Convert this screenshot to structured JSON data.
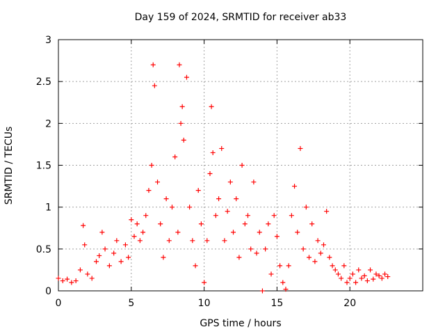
{
  "chart_data": {
    "type": "scatter",
    "title": "Day 159 of 2024, SRMTID for receiver ab33",
    "xlabel": "GPS time / hours",
    "ylabel": "SRMTID / TECUs",
    "xlim": [
      0,
      25
    ],
    "ylim": [
      0,
      3
    ],
    "x_ticks": [
      "0",
      "5",
      "10",
      "15",
      "20"
    ],
    "y_ticks": [
      "0",
      "0.5",
      "1",
      "1.5",
      "2",
      "2.5",
      "3"
    ],
    "grid": true,
    "marker": "plus",
    "color": "#ff0000",
    "series": [
      {
        "name": "SRMTID",
        "x": [
          0.0,
          0.3,
          0.6,
          0.9,
          1.2,
          1.5,
          1.7,
          1.8,
          2.0,
          2.3,
          2.6,
          2.8,
          3.0,
          3.2,
          3.5,
          3.8,
          4.0,
          4.3,
          4.6,
          4.8,
          5.0,
          5.2,
          5.4,
          5.6,
          5.8,
          6.0,
          6.2,
          6.4,
          6.5,
          6.6,
          6.8,
          7.0,
          7.2,
          7.4,
          7.6,
          7.8,
          8.0,
          8.2,
          8.3,
          8.4,
          8.5,
          8.6,
          8.8,
          9.0,
          9.2,
          9.4,
          9.6,
          9.8,
          10.0,
          10.2,
          10.4,
          10.5,
          10.6,
          10.8,
          11.0,
          11.2,
          11.4,
          11.6,
          11.8,
          12.0,
          12.2,
          12.4,
          12.6,
          12.8,
          13.0,
          13.2,
          13.4,
          13.6,
          13.8,
          14.0,
          14.2,
          14.4,
          14.6,
          14.8,
          15.0,
          15.2,
          15.4,
          15.6,
          15.8,
          16.0,
          16.2,
          16.4,
          16.6,
          16.8,
          17.0,
          17.2,
          17.4,
          17.6,
          17.8,
          18.0,
          18.2,
          18.4,
          18.6,
          18.8,
          19.0,
          19.2,
          19.4,
          19.6,
          19.8,
          20.0,
          20.2,
          20.4,
          20.6,
          20.8,
          21.0,
          21.2,
          21.4,
          21.6,
          21.8,
          22.0,
          22.2,
          22.4,
          22.6
        ],
        "y": [
          0.15,
          0.12,
          0.14,
          0.1,
          0.12,
          0.25,
          0.78,
          0.55,
          0.2,
          0.15,
          0.35,
          0.42,
          0.7,
          0.5,
          0.3,
          0.45,
          0.6,
          0.35,
          0.55,
          0.4,
          0.85,
          0.65,
          0.8,
          0.6,
          0.7,
          0.9,
          1.2,
          1.5,
          2.7,
          2.45,
          1.3,
          0.8,
          0.4,
          1.1,
          0.6,
          1.0,
          1.6,
          0.7,
          2.7,
          2.0,
          2.2,
          1.8,
          2.55,
          1.0,
          0.6,
          0.3,
          1.2,
          0.8,
          0.1,
          0.6,
          1.4,
          2.2,
          1.65,
          0.9,
          1.1,
          1.7,
          0.6,
          0.95,
          1.3,
          0.7,
          1.1,
          0.4,
          1.5,
          0.8,
          0.9,
          0.5,
          1.3,
          0.45,
          0.7,
          0.0,
          0.5,
          0.8,
          0.2,
          0.9,
          0.65,
          0.3,
          0.1,
          0.02,
          0.3,
          0.9,
          1.25,
          0.7,
          1.7,
          0.5,
          1.0,
          0.4,
          0.8,
          0.35,
          0.6,
          0.45,
          0.55,
          0.95,
          0.4,
          0.3,
          0.25,
          0.2,
          0.15,
          0.3,
          0.1,
          0.15,
          0.2,
          0.1,
          0.25,
          0.15,
          0.18,
          0.12,
          0.25,
          0.14,
          0.2,
          0.18,
          0.15,
          0.2,
          0.17
        ]
      }
    ]
  }
}
